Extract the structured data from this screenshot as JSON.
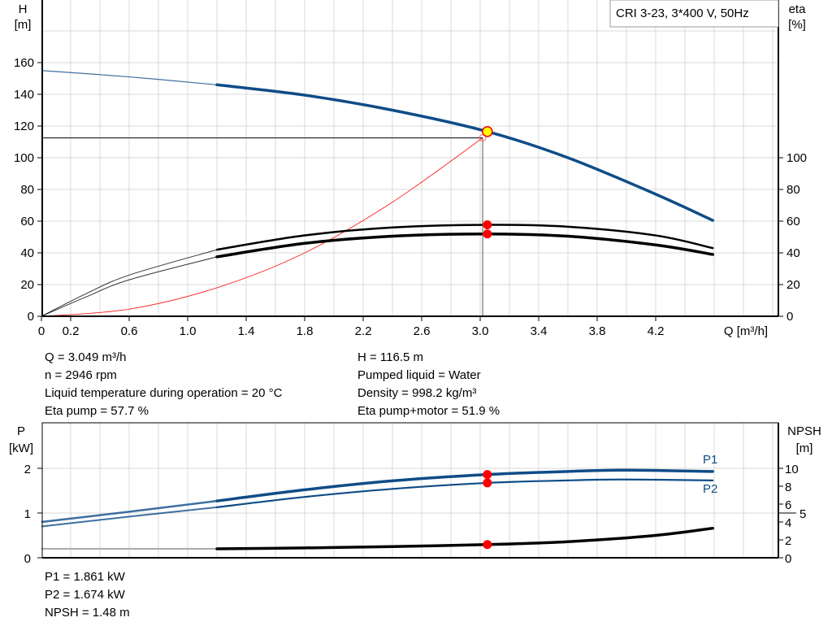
{
  "chart_data": [
    {
      "type": "line",
      "title": "",
      "legend_box": "CRI 3-23, 3*400 V, 50Hz",
      "xlabel": "Q [m³/h]",
      "ylabel_left": [
        "H",
        "[m]"
      ],
      "ylabel_right": [
        "eta",
        "[%]"
      ],
      "xlim": [
        0,
        5.05
      ],
      "ylim": [
        0,
        200
      ],
      "x_ticks": [
        "0",
        "0.2",
        "0.6",
        "1.0",
        "1.4",
        "1.8",
        "2.2",
        "2.6",
        "3.0",
        "3.4",
        "3.8",
        "4.2"
      ],
      "y_ticks_left": [
        "0",
        "20",
        "40",
        "60",
        "80",
        "100",
        "120",
        "140",
        "160"
      ],
      "y_ticks_right": [
        "0",
        "20",
        "40",
        "60",
        "80",
        "100"
      ],
      "grid": true,
      "operating_range_start": 1.2,
      "series": [
        {
          "id": "H",
          "axis": "left",
          "color": "#0f4c87",
          "points": [
            [
              0,
              155
            ],
            [
              0.6,
              151
            ],
            [
              1.2,
              146
            ],
            [
              1.8,
              139.5
            ],
            [
              2.4,
              130
            ],
            [
              3.049,
              116.5
            ],
            [
              3.6,
              100
            ],
            [
              4.2,
              77
            ],
            [
              4.59,
              60.5
            ]
          ]
        },
        {
          "id": "eta-pump",
          "axis": "right",
          "color": "#000000",
          "points": [
            [
              0,
              0
            ],
            [
              0.3,
              14
            ],
            [
              0.6,
              26
            ],
            [
              1.2,
              42
            ],
            [
              1.8,
              51
            ],
            [
              2.4,
              56
            ],
            [
              3.049,
              57.7
            ],
            [
              3.6,
              56.5
            ],
            [
              4.2,
              51
            ],
            [
              4.59,
              43
            ]
          ]
        },
        {
          "id": "eta-pump-motor",
          "axis": "right",
          "color": "#000000",
          "points": [
            [
              0,
              0
            ],
            [
              0.3,
              12
            ],
            [
              0.6,
              23
            ],
            [
              1.2,
              37.5
            ],
            [
              1.8,
              46
            ],
            [
              2.4,
              50.5
            ],
            [
              3.049,
              51.9
            ],
            [
              3.6,
              50.5
            ],
            [
              4.2,
              45
            ],
            [
              4.59,
              39
            ]
          ]
        },
        {
          "id": "system",
          "axis": "left",
          "color": "#ff2020",
          "points": [
            [
              0,
              0
            ],
            [
              0.6,
              4.5
            ],
            [
              1.2,
              18
            ],
            [
              1.8,
              40
            ],
            [
              2.4,
              72
            ],
            [
              3.017,
              112.5
            ]
          ]
        }
      ],
      "duty_point": {
        "Q": 3.049,
        "H": 116.5,
        "color": "#ffff00"
      },
      "requested_point": {
        "Q": 3.017,
        "H": 112.5
      },
      "operating_markers": [
        [
          3.049,
          57.7
        ],
        [
          3.049,
          51.9
        ]
      ]
    },
    {
      "type": "line",
      "title": "",
      "ylabel_left": [
        "P",
        "[kW]"
      ],
      "ylabel_right": [
        "NPSH",
        "[m]"
      ],
      "xlim": [
        0,
        5.05
      ],
      "ylim_left": [
        0,
        3
      ],
      "ylim_right": [
        0,
        15
      ],
      "y_ticks_left": [
        "0",
        "1",
        "2"
      ],
      "y_ticks_right": [
        "0",
        "2",
        "4",
        "5",
        "6",
        "8",
        "10"
      ],
      "grid": true,
      "operating_range_start": 1.2,
      "series": [
        {
          "id": "P1",
          "name": "P1",
          "axis": "left",
          "color": "#0f4c87",
          "points": [
            [
              0,
              0.8
            ],
            [
              0.6,
              1.03
            ],
            [
              1.2,
              1.27
            ],
            [
              1.8,
              1.52
            ],
            [
              2.4,
              1.72
            ],
            [
              3.049,
              1.861
            ],
            [
              3.6,
              1.93
            ],
            [
              4.0,
              1.96
            ],
            [
              4.59,
              1.93
            ]
          ]
        },
        {
          "id": "P2",
          "name": "P2",
          "axis": "left",
          "color": "#0f4c87",
          "points": [
            [
              0,
              0.7
            ],
            [
              0.6,
              0.92
            ],
            [
              1.2,
              1.13
            ],
            [
              1.8,
              1.36
            ],
            [
              2.4,
              1.54
            ],
            [
              3.049,
              1.674
            ],
            [
              3.6,
              1.73
            ],
            [
              4.0,
              1.75
            ],
            [
              4.59,
              1.73
            ]
          ]
        },
        {
          "id": "NPSH",
          "axis": "right",
          "color": "#000000",
          "points": [
            [
              0,
              1.0
            ],
            [
              1.2,
              1.0
            ],
            [
              1.8,
              1.1
            ],
            [
              2.4,
              1.25
            ],
            [
              3.049,
              1.48
            ],
            [
              3.6,
              1.8
            ],
            [
              4.2,
              2.5
            ],
            [
              4.59,
              3.3
            ]
          ]
        }
      ],
      "operating_markers": [
        [
          3.049,
          "P1"
        ],
        [
          3.049,
          "P2"
        ],
        [
          3.049,
          "NPSH"
        ]
      ]
    }
  ],
  "info_top": {
    "left": [
      "Q = 3.049 m³/h",
      "n = 2946 rpm",
      "Liquid temperature during operation = 20 °C",
      "Eta pump = 57.7 %"
    ],
    "right": [
      "H = 116.5 m",
      "Pumped liquid = Water",
      "Density = 998.2 kg/m³",
      "Eta pump+motor = 51.9 %"
    ]
  },
  "info_bottom": [
    "P1 = 1.861 kW",
    "P2 = 1.674 kW",
    "NPSH = 1.48 m"
  ]
}
